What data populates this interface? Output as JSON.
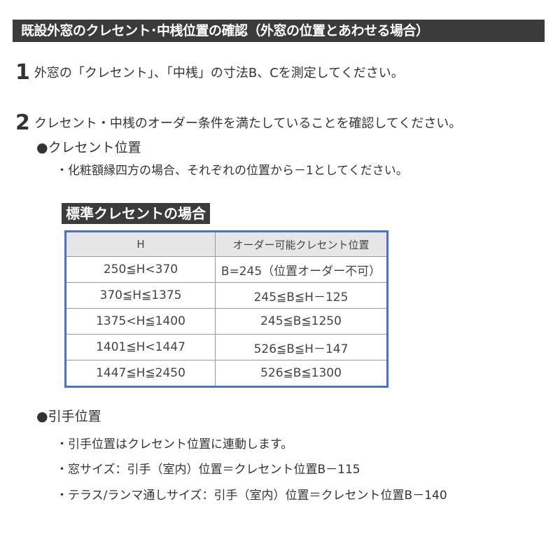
{
  "title": "既設外窓のクレセント･中桟位置の確認（外窓の位置とあわせる場合）",
  "steps": [
    {
      "number": "1",
      "text": "外窓の「クレセント」、「中桟」の寸法B、Cを測定してください。"
    },
    {
      "number": "2",
      "text": "クレセント・中桟のオーダー条件を満たしていることを確認してください。"
    }
  ],
  "crescent": {
    "heading": "●クレセント位置",
    "note": "・化粧額縁四方の場合、それぞれの位置から－1としてください。",
    "table_label": "標準クレセントの場合",
    "headers": [
      "H",
      "オーダー可能クレセント位置"
    ],
    "rows": [
      [
        "250≦H<370",
        "B=245（位置オーダー不可）"
      ],
      [
        "370≦H≦1375",
        "245≦B≦H－125"
      ],
      [
        "1375<H≦1400",
        "245≦B≦1250"
      ],
      [
        "1401≦H<1447",
        "526≦B≦H－147"
      ],
      [
        "1447≦H≦2450",
        "526≦B≦1300"
      ]
    ]
  },
  "handle": {
    "heading": "●引手位置",
    "notes": [
      "・引手位置はクレセント位置に連動します。",
      "・窓サイズ：引手（室内）位置＝クレセント位置B－115",
      "・テラス/ランマ通しサイズ：引手（室内）位置＝クレセント位置B－140"
    ]
  }
}
